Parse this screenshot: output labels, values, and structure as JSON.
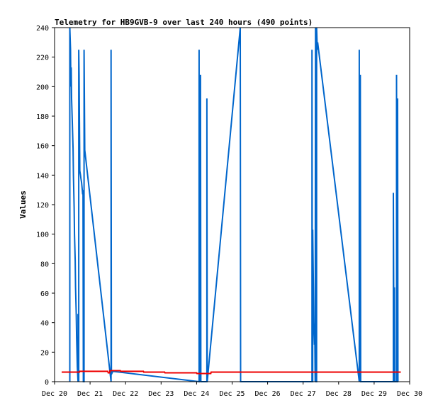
{
  "chart_data": {
    "type": "line",
    "title": "Telemetry for HB9GVB-9 over last 240 hours (490 points)",
    "xlabel": "",
    "ylabel": "Values",
    "x_ticks": [
      "Dec 20",
      "Dec 21",
      "Dec 22",
      "Dec 23",
      "Dec 24",
      "Dec 25",
      "Dec 26",
      "Dec 27",
      "Dec 28",
      "Dec 29",
      "Dec 30"
    ],
    "y_ticks": [
      0,
      20,
      40,
      60,
      80,
      100,
      120,
      140,
      160,
      180,
      200,
      220,
      240
    ],
    "xlim": [
      0,
      10
    ],
    "ylim": [
      0,
      240
    ],
    "x_unit": "days after Dec 20",
    "grid": false,
    "colors": {
      "series_blue": "#0066cc",
      "series_red": "#ee0000"
    },
    "series": [
      {
        "color": "#0066cc",
        "points": [
          [
            0.43,
            0
          ],
          [
            0.43,
            240
          ],
          [
            0.45,
            225
          ],
          [
            0.46,
            200
          ],
          [
            0.47,
            213
          ],
          [
            0.48,
            192
          ],
          [
            0.5,
            176
          ],
          [
            0.52,
            158
          ],
          [
            0.53,
            140
          ],
          [
            0.55,
            118
          ],
          [
            0.56,
            100
          ],
          [
            0.58,
            82
          ],
          [
            0.59,
            64
          ],
          [
            0.61,
            45
          ],
          [
            0.62,
            30
          ],
          [
            0.63,
            20
          ],
          [
            0.64,
            10
          ],
          [
            0.65,
            5
          ],
          [
            0.66,
            0
          ],
          [
            0.66,
            46
          ],
          [
            0.68,
            0
          ],
          [
            0.68,
            225
          ],
          [
            0.69,
            208
          ],
          [
            0.7,
            176
          ],
          [
            0.71,
            143
          ],
          [
            0.73,
            140
          ],
          [
            0.74,
            138
          ],
          [
            0.76,
            135
          ],
          [
            0.78,
            130
          ],
          [
            0.79,
            127
          ],
          [
            0.8,
            130
          ],
          [
            0.81,
            0
          ],
          [
            0.83,
            0
          ],
          [
            0.83,
            225
          ],
          [
            0.85,
            157
          ],
          [
            1.59,
            0
          ],
          [
            1.59,
            225
          ],
          [
            1.6,
            8
          ],
          [
            1.62,
            6
          ],
          [
            1.64,
            7
          ],
          [
            4.07,
            0
          ],
          [
            4.07,
            225
          ],
          [
            4.08,
            3
          ],
          [
            4.11,
            0
          ],
          [
            4.11,
            208
          ],
          [
            4.12,
            0
          ],
          [
            4.29,
            0
          ],
          [
            4.29,
            192
          ],
          [
            4.3,
            0
          ],
          [
            5.23,
            240
          ],
          [
            5.24,
            0
          ],
          [
            7.25,
            0
          ],
          [
            7.25,
            225
          ],
          [
            7.26,
            0
          ],
          [
            7.27,
            0
          ],
          [
            7.27,
            103
          ],
          [
            7.29,
            64
          ],
          [
            7.3,
            40
          ],
          [
            7.32,
            25
          ],
          [
            7.33,
            30
          ],
          [
            7.34,
            0
          ],
          [
            7.35,
            240
          ],
          [
            7.36,
            0
          ],
          [
            7.38,
            0
          ],
          [
            7.38,
            240
          ],
          [
            7.4,
            225
          ],
          [
            7.41,
            230
          ],
          [
            8.58,
            0
          ],
          [
            8.58,
            225
          ],
          [
            8.59,
            3
          ],
          [
            8.61,
            0
          ],
          [
            8.61,
            208
          ],
          [
            8.62,
            0
          ],
          [
            9.54,
            0
          ],
          [
            9.54,
            128
          ],
          [
            9.56,
            0
          ],
          [
            9.57,
            64
          ],
          [
            9.58,
            0
          ],
          [
            9.63,
            0
          ],
          [
            9.63,
            208
          ],
          [
            9.64,
            0
          ],
          [
            9.66,
            0
          ],
          [
            9.66,
            192
          ],
          [
            9.67,
            0
          ]
        ]
      },
      {
        "color": "#ee0000",
        "points": [
          [
            0.2,
            6.5
          ],
          [
            0.7,
            6.5
          ],
          [
            0.71,
            7
          ],
          [
            1.5,
            7
          ],
          [
            1.51,
            6
          ],
          [
            1.55,
            6
          ],
          [
            1.56,
            7.5
          ],
          [
            1.85,
            7.5
          ],
          [
            1.86,
            7
          ],
          [
            2.5,
            7
          ],
          [
            2.51,
            6.5
          ],
          [
            3.1,
            6.5
          ],
          [
            3.11,
            6
          ],
          [
            4.0,
            6
          ],
          [
            4.01,
            5.5
          ],
          [
            4.4,
            5.5
          ],
          [
            4.41,
            6.5
          ],
          [
            9.75,
            6.5
          ]
        ]
      }
    ]
  }
}
